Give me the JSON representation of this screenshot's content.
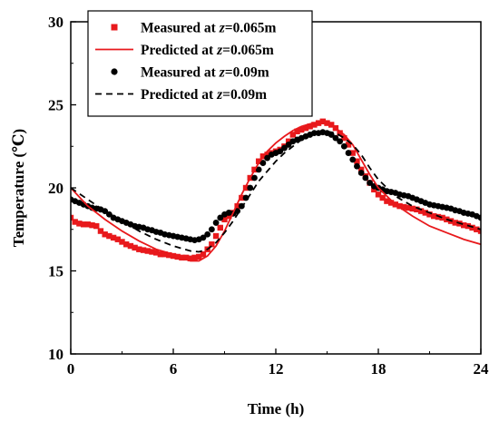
{
  "chart_data": {
    "type": "line",
    "xlabel": "Time (h)",
    "ylabel": "Temperature (℃)",
    "xlim": [
      0,
      24
    ],
    "ylim": [
      10,
      30
    ],
    "xticks": [
      0,
      6,
      12,
      18,
      24
    ],
    "yticks": [
      10,
      15,
      20,
      25,
      30
    ],
    "grid": false,
    "legend_position": "top-left",
    "series": [
      {
        "name": "Measured at z=0.065m",
        "legend_prefix": "Measured at ",
        "legend_var": "z",
        "legend_suffix": "=0.065m",
        "style": "square-markers",
        "color": "#e8191c",
        "x": [
          0.0,
          0.25,
          0.5,
          0.75,
          1.0,
          1.25,
          1.5,
          1.75,
          2.0,
          2.25,
          2.5,
          2.75,
          3.0,
          3.25,
          3.5,
          3.75,
          4.0,
          4.25,
          4.5,
          4.75,
          5.0,
          5.25,
          5.5,
          5.75,
          6.0,
          6.25,
          6.5,
          6.75,
          7.0,
          7.25,
          7.5,
          7.75,
          8.0,
          8.25,
          8.5,
          8.75,
          9.0,
          9.25,
          9.5,
          9.75,
          10.0,
          10.25,
          10.5,
          10.75,
          11.0,
          11.25,
          11.5,
          11.75,
          12.0,
          12.25,
          12.5,
          12.75,
          13.0,
          13.25,
          13.5,
          13.75,
          14.0,
          14.25,
          14.5,
          14.75,
          15.0,
          15.25,
          15.5,
          15.75,
          16.0,
          16.25,
          16.5,
          16.75,
          17.0,
          17.25,
          17.5,
          17.75,
          18.0,
          18.25,
          18.5,
          18.75,
          19.0,
          19.25,
          19.5,
          19.75,
          20.0,
          20.25,
          20.5,
          20.75,
          21.0,
          21.25,
          21.5,
          21.75,
          22.0,
          22.25,
          22.5,
          22.75,
          23.0,
          23.25,
          23.5,
          23.75,
          24.0
        ],
        "y": [
          18.2,
          17.95,
          17.85,
          17.8,
          17.8,
          17.75,
          17.7,
          17.4,
          17.2,
          17.1,
          17.0,
          16.9,
          16.75,
          16.6,
          16.5,
          16.4,
          16.3,
          16.25,
          16.2,
          16.15,
          16.1,
          16.0,
          16.0,
          15.95,
          15.9,
          15.85,
          15.8,
          15.8,
          15.75,
          15.8,
          15.85,
          16.0,
          16.3,
          16.6,
          17.1,
          17.6,
          18.1,
          18.3,
          18.5,
          18.9,
          19.4,
          20.0,
          20.6,
          21.1,
          21.6,
          21.9,
          22.0,
          22.1,
          22.2,
          22.3,
          22.5,
          22.8,
          23.2,
          23.4,
          23.5,
          23.6,
          23.7,
          23.8,
          23.9,
          24.0,
          23.9,
          23.8,
          23.6,
          23.3,
          23.0,
          22.6,
          22.1,
          21.6,
          21.1,
          20.7,
          20.3,
          19.9,
          19.6,
          19.4,
          19.2,
          19.1,
          19.0,
          18.9,
          18.85,
          18.8,
          18.75,
          18.7,
          18.6,
          18.5,
          18.4,
          18.3,
          18.25,
          18.2,
          18.1,
          18.0,
          17.9,
          17.85,
          17.75,
          17.7,
          17.6,
          17.5,
          17.4
        ]
      },
      {
        "name": "Predicted at z=0.065m",
        "legend_prefix": "Predicted at ",
        "legend_var": "z",
        "legend_suffix": "=0.065m",
        "style": "solid-line",
        "color": "#e8191c",
        "x": [
          0,
          1,
          2,
          3,
          4,
          5,
          6,
          6.5,
          7,
          7.5,
          8,
          8.5,
          9,
          9.5,
          10,
          10.5,
          11,
          11.5,
          12,
          12.5,
          13,
          13.5,
          14,
          14.5,
          15,
          15.5,
          16,
          16.5,
          17,
          17.5,
          18,
          19,
          20,
          21,
          22,
          23,
          24
        ],
        "y": [
          20.0,
          18.9,
          18.1,
          17.4,
          16.8,
          16.3,
          16.0,
          15.8,
          15.6,
          15.6,
          15.9,
          16.5,
          17.4,
          18.5,
          19.6,
          20.6,
          21.5,
          22.2,
          22.7,
          23.1,
          23.45,
          23.7,
          23.85,
          23.95,
          23.9,
          23.6,
          23.2,
          22.6,
          21.7,
          20.8,
          20.0,
          19.0,
          18.3,
          17.7,
          17.3,
          16.9,
          16.6
        ]
      },
      {
        "name": "Measured at z=0.09m",
        "legend_prefix": "Measured at ",
        "legend_var": "z",
        "legend_suffix": "=0.09m",
        "style": "circle-markers",
        "color": "#000000",
        "x": [
          0.0,
          0.25,
          0.5,
          0.75,
          1.0,
          1.25,
          1.5,
          1.75,
          2.0,
          2.25,
          2.5,
          2.75,
          3.0,
          3.25,
          3.5,
          3.75,
          4.0,
          4.25,
          4.5,
          4.75,
          5.0,
          5.25,
          5.5,
          5.75,
          6.0,
          6.25,
          6.5,
          6.75,
          7.0,
          7.25,
          7.5,
          7.75,
          8.0,
          8.25,
          8.5,
          8.75,
          9.0,
          9.25,
          9.5,
          9.75,
          10.0,
          10.25,
          10.5,
          10.75,
          11.0,
          11.25,
          11.5,
          11.75,
          12.0,
          12.25,
          12.5,
          12.75,
          13.0,
          13.25,
          13.5,
          13.75,
          14.0,
          14.25,
          14.5,
          14.75,
          15.0,
          15.25,
          15.5,
          15.75,
          16.0,
          16.25,
          16.5,
          16.75,
          17.0,
          17.25,
          17.5,
          17.75,
          18.0,
          18.25,
          18.5,
          18.75,
          19.0,
          19.25,
          19.5,
          19.75,
          20.0,
          20.25,
          20.5,
          20.75,
          21.0,
          21.25,
          21.5,
          21.75,
          22.0,
          22.25,
          22.5,
          22.75,
          23.0,
          23.25,
          23.5,
          23.75,
          24.0
        ],
        "y": [
          19.3,
          19.2,
          19.1,
          19.0,
          18.9,
          18.8,
          18.75,
          18.7,
          18.6,
          18.4,
          18.2,
          18.1,
          18.0,
          17.9,
          17.8,
          17.7,
          17.65,
          17.6,
          17.5,
          17.45,
          17.35,
          17.3,
          17.2,
          17.15,
          17.1,
          17.05,
          17.0,
          16.95,
          16.9,
          16.85,
          16.9,
          17.0,
          17.2,
          17.5,
          17.9,
          18.2,
          18.4,
          18.5,
          18.45,
          18.6,
          18.9,
          19.4,
          20.0,
          20.6,
          21.1,
          21.5,
          21.8,
          22.0,
          22.1,
          22.2,
          22.4,
          22.6,
          22.8,
          22.9,
          23.0,
          23.1,
          23.2,
          23.3,
          23.3,
          23.35,
          23.3,
          23.2,
          23.0,
          22.8,
          22.5,
          22.1,
          21.7,
          21.3,
          20.9,
          20.6,
          20.3,
          20.1,
          20.0,
          19.9,
          19.8,
          19.75,
          19.7,
          19.6,
          19.55,
          19.5,
          19.4,
          19.3,
          19.2,
          19.1,
          19.0,
          18.95,
          18.9,
          18.85,
          18.8,
          18.75,
          18.65,
          18.6,
          18.5,
          18.45,
          18.4,
          18.3,
          18.2
        ]
      },
      {
        "name": "Predicted at z=0.09m",
        "legend_prefix": "Predicted at ",
        "legend_var": "z",
        "legend_suffix": "=0.09m",
        "style": "dashed-line",
        "color": "#000000",
        "x": [
          0,
          1,
          2,
          3,
          4,
          5,
          6,
          7,
          7.5,
          8,
          8.5,
          9,
          9.5,
          10,
          10.5,
          11,
          11.5,
          12,
          12.5,
          13,
          13.5,
          14,
          14.5,
          15,
          15.5,
          16,
          16.5,
          17,
          17.5,
          18,
          19,
          20,
          21,
          22,
          23,
          24
        ],
        "y": [
          20.0,
          19.3,
          18.6,
          18.0,
          17.4,
          16.9,
          16.5,
          16.2,
          16.15,
          16.3,
          16.7,
          17.3,
          18.0,
          18.8,
          19.6,
          20.4,
          21.0,
          21.6,
          22.1,
          22.5,
          22.9,
          23.2,
          23.35,
          23.4,
          23.3,
          23.0,
          22.6,
          22.0,
          21.2,
          20.5,
          19.5,
          18.9,
          18.5,
          18.1,
          17.8,
          17.5
        ]
      }
    ]
  }
}
